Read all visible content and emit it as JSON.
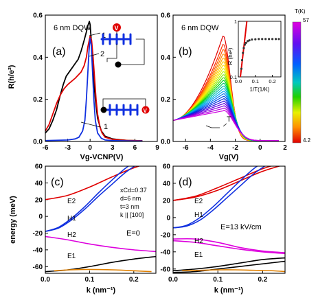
{
  "chart_data": [
    {
      "id": "a",
      "type": "line",
      "panel_label": "(a)",
      "annotation": "6 nm DQW",
      "xlabel": "Vg-VCNP(V)",
      "ylabel": "R(h/e²)",
      "xlim": [
        -6,
        9
      ],
      "ylim": [
        0,
        0.6
      ],
      "xticks": [
        "-6",
        "-3",
        "0",
        "3",
        "6",
        "9"
      ],
      "yticks": [
        "0.0",
        "0.2",
        "0.4",
        "0.6"
      ],
      "curve_labels": [
        "1",
        "2",
        "1"
      ],
      "series": [
        {
          "color": "#000000",
          "x": [
            -6,
            -5.5,
            -5,
            -4.5,
            -4,
            -3.6,
            -3.2,
            -2.8,
            -2.4,
            -2,
            -1.6,
            -1.2,
            -0.8,
            -0.5,
            -0.3,
            -0.1,
            0,
            0.2,
            0.4,
            0.7,
            1,
            1.5,
            2,
            3,
            4,
            5,
            6,
            7
          ],
          "y": [
            0.04,
            0.06,
            0.1,
            0.15,
            0.22,
            0.27,
            0.31,
            0.33,
            0.35,
            0.37,
            0.39,
            0.43,
            0.48,
            0.52,
            0.55,
            0.57,
            0.555,
            0.46,
            0.33,
            0.2,
            0.11,
            0.05,
            0.025,
            0.012,
            0.008,
            0.005,
            0.004,
            0.003
          ]
        },
        {
          "color": "#e00000",
          "x": [
            -6,
            -5.5,
            -5,
            -4.5,
            -4,
            -3.5,
            -3,
            -2.5,
            -2,
            -1.6,
            -1.2,
            -0.8,
            -0.5,
            -0.3,
            0,
            0.2,
            0.4,
            0.6,
            0.8,
            1,
            1.3,
            1.6,
            2,
            3,
            4,
            5,
            6,
            7
          ],
          "y": [
            0.05,
            0.08,
            0.13,
            0.18,
            0.22,
            0.25,
            0.27,
            0.285,
            0.3,
            0.315,
            0.33,
            0.36,
            0.4,
            0.45,
            0.5,
            0.48,
            0.4,
            0.3,
            0.2,
            0.13,
            0.07,
            0.04,
            0.02,
            0.01,
            0.007,
            0.005,
            0.004,
            0.003
          ]
        },
        {
          "color": "#1030e0",
          "x": [
            -6,
            -3,
            -2,
            -1.5,
            -1,
            -0.7,
            -0.5,
            -0.3,
            -0.15,
            0,
            0.15,
            0.3,
            0.5,
            0.7,
            1,
            1.5,
            2,
            3,
            4,
            6,
            7
          ],
          "y": [
            0.004,
            0.007,
            0.012,
            0.02,
            0.05,
            0.1,
            0.2,
            0.33,
            0.43,
            0.49,
            0.46,
            0.35,
            0.2,
            0.1,
            0.04,
            0.015,
            0.007,
            0.004,
            0.003,
            0.002,
            0.002
          ]
        }
      ]
    },
    {
      "id": "b",
      "type": "line",
      "panel_label": "(b)",
      "annotation": "6 nm DQW",
      "arrow_label": "T",
      "xlabel": "Vg(V)",
      "xlim": [
        -7,
        2
      ],
      "ylim": [
        0,
        0.6
      ],
      "xticks": [
        "-6",
        "-4",
        "-2",
        "0",
        "2"
      ],
      "yticks": [
        "0.0",
        "0.2",
        "0.4",
        "0.6"
      ],
      "family": {
        "count": 24,
        "colors": [
          "#e00000",
          "#ff2a00",
          "#ff5a00",
          "#ff8800",
          "#ffaa00",
          "#ffc800",
          "#ffe000",
          "#e8f000",
          "#b8f000",
          "#80ee00",
          "#40e000",
          "#00d020",
          "#00c868",
          "#00c0a8",
          "#00b8d8",
          "#00a0f0",
          "#0078f0",
          "#0050e8",
          "#0028e0",
          "#3010e0",
          "#6000e0",
          "#8800e0",
          "#b000e0",
          "#d000e0"
        ],
        "start_value": 0.1,
        "peak_x": -3,
        "peak_first": 0.5,
        "peak_last": 0.145,
        "left_width": 2.4,
        "right_width": 0.9
      },
      "legend": {
        "title": "T(K)",
        "max": "57",
        "min": "4.2"
      },
      "inset": {
        "xlabel": "1/T(1/K)",
        "ylabel": "R (he²)",
        "xlim": [
          0,
          0.25
        ],
        "ylim": [
          0.1,
          1
        ],
        "yscale": "log",
        "xticks": [
          "0.0",
          "0.1",
          "0.2"
        ],
        "yticks": [
          "1",
          "0.1"
        ],
        "points": {
          "color": "#333333",
          "x": [
            0.018,
            0.022,
            0.027,
            0.032,
            0.038,
            0.045,
            0.055,
            0.065,
            0.08,
            0.1,
            0.12,
            0.14,
            0.16,
            0.18,
            0.2,
            0.22,
            0.238
          ],
          "y": [
            0.14,
            0.2,
            0.27,
            0.33,
            0.38,
            0.41,
            0.44,
            0.455,
            0.47,
            0.475,
            0.48,
            0.48,
            0.48,
            0.48,
            0.48,
            0.48,
            0.48
          ]
        },
        "fit": {
          "color": "#e00000",
          "x": [
            0.012,
            0.05
          ],
          "y": [
            0.1,
            1
          ]
        }
      }
    },
    {
      "id": "c",
      "type": "line",
      "panel_label": "(c)",
      "ylabel": "energy (meV)",
      "xlabel": "k (nm⁻¹)",
      "xlim": [
        0,
        0.25
      ],
      "ylim": [
        -68,
        60
      ],
      "xticks": [
        "0.0",
        "0.1",
        "0.2"
      ],
      "yticks": [
        "60",
        "40",
        "20",
        "0",
        "-20",
        "-40",
        "-60"
      ],
      "params": [
        "xCd=0.37",
        "d=6 nm",
        "t=3 nm",
        "k || [100]"
      ],
      "field": "E=0",
      "band_labels": [
        "E2",
        "H1",
        "H2",
        "E1"
      ],
      "series": [
        {
          "name": "E2",
          "color": "#e00000",
          "x": [
            0,
            0.05,
            0.1,
            0.15,
            0.2,
            0.25
          ],
          "y": [
            20,
            25,
            35,
            47,
            58,
            66
          ]
        },
        {
          "name": "H1",
          "color": "#1030e0",
          "x": [
            0,
            0.03,
            0.06,
            0.09,
            0.12,
            0.15,
            0.18,
            0.21
          ],
          "y": [
            -18,
            -13,
            -2,
            12,
            28,
            43,
            57,
            68
          ]
        },
        {
          "name": "H1b",
          "color": "#1030e0",
          "x": [
            0,
            0.03,
            0.06,
            0.09,
            0.12,
            0.15,
            0.18,
            0.21
          ],
          "y": [
            -18,
            -14,
            -4,
            9,
            24,
            38,
            52,
            63
          ]
        },
        {
          "name": "H2",
          "color": "#dd00dd",
          "x": [
            0,
            0.05,
            0.1,
            0.15,
            0.2,
            0.25
          ],
          "y": [
            -24,
            -28,
            -33,
            -37,
            -40,
            -42
          ]
        },
        {
          "name": "E1",
          "color": "#000000",
          "x": [
            0,
            0.05,
            0.1,
            0.15,
            0.2,
            0.25
          ],
          "y": [
            -66,
            -64,
            -60,
            -55,
            -51,
            -48
          ]
        },
        {
          "name": "L",
          "color": "#e08000",
          "x": [
            0.02,
            0.05,
            0.08,
            0.12,
            0.16,
            0.2,
            0.24
          ],
          "y": [
            -65,
            -64,
            -63.5,
            -63.5,
            -64,
            -65,
            -66
          ]
        }
      ]
    },
    {
      "id": "d",
      "type": "line",
      "panel_label": "(d)",
      "xlabel": "k (nm⁻¹)",
      "xlim": [
        0,
        0.25
      ],
      "ylim": [
        -65,
        60
      ],
      "xticks": [
        "0.0",
        "0.1",
        "0.2"
      ],
      "yticks": [
        "60",
        "40",
        "20",
        "0",
        "-20",
        "-40",
        "-60"
      ],
      "field": "E=13 kV/cm",
      "band_labels": [
        "E2",
        "H1",
        "H2",
        "E1"
      ],
      "series": [
        {
          "name": "E2",
          "color": "#e00000",
          "x": [
            0,
            0.05,
            0.1,
            0.15,
            0.2,
            0.25
          ],
          "y": [
            20,
            25,
            35,
            46,
            57,
            65
          ]
        },
        {
          "name": "E2b",
          "color": "#e00000",
          "x": [
            0,
            0.05,
            0.1,
            0.15,
            0.2,
            0.25
          ],
          "y": [
            20,
            24,
            32,
            43,
            54,
            62
          ]
        },
        {
          "name": "H1",
          "color": "#1030e0",
          "x": [
            0,
            0.03,
            0.06,
            0.09,
            0.12,
            0.15,
            0.18,
            0.21
          ],
          "y": [
            -12,
            -9,
            0,
            13,
            28,
            43,
            57,
            68
          ]
        },
        {
          "name": "H1b",
          "color": "#1030e0",
          "x": [
            0,
            0.03,
            0.06,
            0.09,
            0.12,
            0.15,
            0.18,
            0.21
          ],
          "y": [
            -12,
            -10,
            -3,
            9,
            23,
            37,
            51,
            62
          ]
        },
        {
          "name": "H2",
          "color": "#dd00dd",
          "x": [
            0,
            0.05,
            0.1,
            0.15,
            0.2,
            0.25
          ],
          "y": [
            -25,
            -25,
            -29,
            -35,
            -39,
            -41
          ]
        },
        {
          "name": "H2b",
          "color": "#dd00dd",
          "x": [
            0,
            0.05,
            0.1,
            0.15,
            0.2,
            0.25
          ],
          "y": [
            -27,
            -29,
            -33,
            -37,
            -40,
            -42
          ]
        },
        {
          "name": "E1",
          "color": "#000000",
          "x": [
            0,
            0.05,
            0.1,
            0.15,
            0.2,
            0.25
          ],
          "y": [
            -62,
            -60,
            -57,
            -53,
            -49,
            -47
          ]
        },
        {
          "name": "E1b",
          "color": "#000000",
          "x": [
            0,
            0.05,
            0.1,
            0.15,
            0.2,
            0.25
          ],
          "y": [
            -64,
            -63,
            -60,
            -57,
            -54,
            -51
          ]
        },
        {
          "name": "L",
          "color": "#e08000",
          "x": [
            0.02,
            0.06,
            0.1,
            0.14,
            0.18,
            0.22,
            0.25
          ],
          "y": [
            -62,
            -61.5,
            -61,
            -61,
            -61.5,
            -62,
            -63
          ]
        }
      ]
    }
  ]
}
